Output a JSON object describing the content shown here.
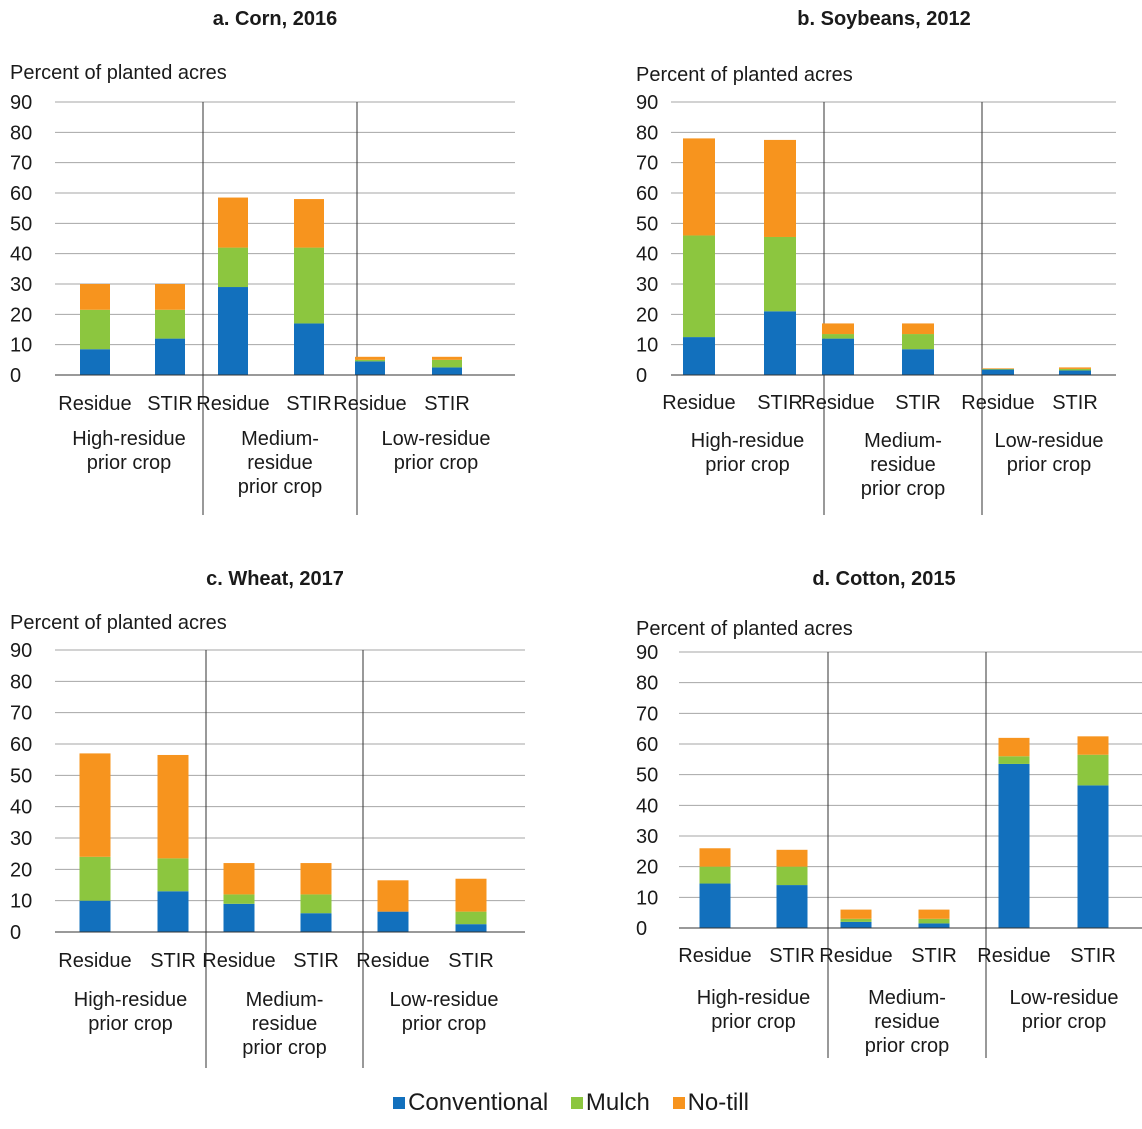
{
  "colors": {
    "conventional": "#1270BD",
    "mulch": "#8CC63F",
    "notill": "#F7941E"
  },
  "legend": [
    {
      "key": "conventional",
      "label": "Conventional"
    },
    {
      "key": "mulch",
      "label": "Mulch"
    },
    {
      "key": "notill",
      "label": "No-till"
    }
  ],
  "chart_data": [
    {
      "type": "bar",
      "stacked": true,
      "title": "a. Corn, 2016",
      "ylabel": "Percent of planted acres",
      "ylim": [
        0,
        90
      ],
      "yticks": [
        0,
        10,
        20,
        30,
        40,
        50,
        60,
        70,
        80,
        90
      ],
      "grid": true,
      "groups": [
        {
          "label": [
            "High-residue",
            "prior crop"
          ],
          "categories": [
            "Residue",
            "STIR"
          ]
        },
        {
          "label": [
            "Medium-",
            "residue",
            "prior crop"
          ],
          "categories": [
            "Residue",
            "STIR"
          ]
        },
        {
          "label": [
            "Low-residue",
            "prior crop"
          ],
          "categories": [
            "Residue",
            "STIR"
          ]
        }
      ],
      "series": [
        {
          "name": "Conventional",
          "values": [
            8.5,
            12,
            29,
            17,
            4.5,
            2.5
          ]
        },
        {
          "name": "Mulch",
          "values": [
            13,
            9.5,
            13,
            25,
            0.5,
            2.5
          ]
        },
        {
          "name": "No-till",
          "values": [
            8.5,
            8.5,
            16.5,
            16,
            1,
            1
          ]
        }
      ]
    },
    {
      "type": "bar",
      "stacked": true,
      "title": "b. Soybeans, 2012",
      "ylabel": "Percent of planted acres",
      "ylim": [
        0,
        90
      ],
      "yticks": [
        0,
        10,
        20,
        30,
        40,
        50,
        60,
        70,
        80,
        90
      ],
      "grid": true,
      "groups": [
        {
          "label": [
            "High-residue",
            "prior crop"
          ],
          "categories": [
            "Residue",
            "STIR"
          ]
        },
        {
          "label": [
            "Medium-",
            "residue",
            "prior crop"
          ],
          "categories": [
            "Residue",
            "STIR"
          ]
        },
        {
          "label": [
            "Low-residue",
            "prior crop"
          ],
          "categories": [
            "Residue",
            "STIR"
          ]
        }
      ],
      "series": [
        {
          "name": "Conventional",
          "values": [
            12.5,
            21,
            12,
            8.5,
            1.8,
            1.5
          ]
        },
        {
          "name": "Mulch",
          "values": [
            33.5,
            24.5,
            1.5,
            5,
            0.2,
            0.5
          ]
        },
        {
          "name": "No-till",
          "values": [
            32,
            32,
            3.5,
            3.5,
            0.2,
            0.5
          ]
        }
      ]
    },
    {
      "type": "bar",
      "stacked": true,
      "title": "c. Wheat, 2017",
      "ylabel": "Percent of planted acres",
      "ylim": [
        0,
        90
      ],
      "yticks": [
        0,
        10,
        20,
        30,
        40,
        50,
        60,
        70,
        80,
        90
      ],
      "grid": true,
      "groups": [
        {
          "label": [
            "High-residue",
            "prior crop"
          ],
          "categories": [
            "Residue",
            "STIR"
          ]
        },
        {
          "label": [
            "Medium-",
            "residue",
            "prior crop"
          ],
          "categories": [
            "Residue",
            "STIR"
          ]
        },
        {
          "label": [
            "Low-residue",
            "prior crop"
          ],
          "categories": [
            "Residue",
            "STIR"
          ]
        }
      ],
      "series": [
        {
          "name": "Conventional",
          "values": [
            10,
            13,
            9,
            6,
            6.5,
            2.5
          ]
        },
        {
          "name": "Mulch",
          "values": [
            14,
            10.5,
            3,
            6,
            0,
            4
          ]
        },
        {
          "name": "No-till",
          "values": [
            33,
            33,
            10,
            10,
            10,
            10.5
          ]
        }
      ]
    },
    {
      "type": "bar",
      "stacked": true,
      "title": "d. Cotton, 2015",
      "ylabel": "Percent of planted acres",
      "ylim": [
        0,
        90
      ],
      "yticks": [
        0,
        10,
        20,
        30,
        40,
        50,
        60,
        70,
        80,
        90
      ],
      "grid": true,
      "groups": [
        {
          "label": [
            "High-residue",
            "prior crop"
          ],
          "categories": [
            "Residue",
            "STIR"
          ]
        },
        {
          "label": [
            "Medium-",
            "residue",
            "prior crop"
          ],
          "categories": [
            "Residue",
            "STIR"
          ]
        },
        {
          "label": [
            "Low-residue",
            "prior crop"
          ],
          "categories": [
            "Residue",
            "STIR"
          ]
        }
      ],
      "series": [
        {
          "name": "Conventional",
          "values": [
            14.5,
            14,
            2,
            1.5,
            53.5,
            46.5
          ]
        },
        {
          "name": "Mulch",
          "values": [
            5.5,
            6,
            1,
            1.5,
            2.5,
            10
          ]
        },
        {
          "name": "No-till",
          "values": [
            6,
            5.5,
            3,
            3,
            6,
            6
          ]
        }
      ]
    }
  ]
}
